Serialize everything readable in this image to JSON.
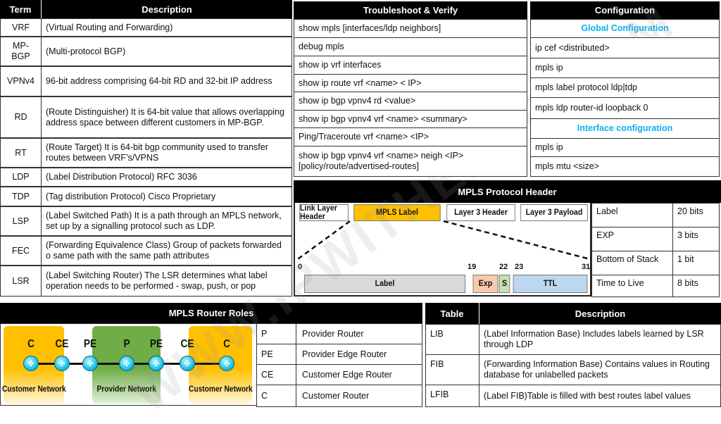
{
  "terms": {
    "header": {
      "term": "Term",
      "description": "Description"
    },
    "rows": [
      {
        "term": "VRF",
        "description": "(Virtual Routing and Forwarding)"
      },
      {
        "term": "MP-BGP",
        "description": "(Multi-protocol BGP)"
      },
      {
        "term": "VPNv4",
        "description": "96-bit address comprising 64-bit RD and 32-bit IP address"
      },
      {
        "term": "RD",
        "description": "(Route Distinguisher) It is 64-bit value that allows overlapping address space between different customers in MP-BGP."
      },
      {
        "term": "RT",
        "description": "(Route Target) It is 64-bit bgp community used to transfer routes between VRF’s/VPNS"
      },
      {
        "term": "LDP",
        "description": "(Label Distribution Protocol) RFC 3036"
      },
      {
        "term": "TDP",
        "description": "(Tag distribution Protocol) Cisco Proprietary"
      },
      {
        "term": "LSP",
        "description": "(Label Switched Path) It is a path through an MPLS network, set up by a signalling protocol such as LDP."
      },
      {
        "term": "FEC",
        "description": "(Forwarding Equivalence Class) Group of packets forwarded o same path with the same path attributes"
      },
      {
        "term": "LSR",
        "description": "(Label Switching Router) The LSR determines what label operation needs to be performed - swap, push, or pop"
      }
    ]
  },
  "troubleshoot": {
    "title": "Troubleshoot & Verify",
    "items": [
      "show mpls [interfaces/ldp neighbors]",
      "debug mpls",
      "show ip vrf interfaces",
      "show ip route vrf <name> < IP>",
      "show ip bgp vpnv4 rd <value>",
      "show ip bgp vpnv4 vrf <name> <summary>",
      "Ping/Traceroute vrf <name> <IP>",
      "show ip bgp vpnv4 vrf <name> neigh <IP> [policy/route/advertised-routes]"
    ]
  },
  "configuration": {
    "title": "Configuration",
    "global_title": "Global Configuration",
    "global_items": [
      "ip cef <distributed>",
      "mpls ip",
      "mpls label protocol ldp|tdp",
      "mpls ldp router-id loopback 0"
    ],
    "interface_title": "Interface configuration",
    "interface_items": [
      "mpls ip",
      "mpls mtu <size>"
    ],
    "heading_color": "#0ab0ef"
  },
  "header_diagram": {
    "title": "MPLS Protocol Header",
    "frame": [
      "Link Layer Header",
      "MPLS Label",
      "Layer 3 Header",
      "Layer 3 Payload"
    ],
    "bit_numbers": [
      "0",
      "19",
      "22",
      "23",
      "31"
    ],
    "fields": [
      {
        "label": "Label",
        "color": "#d9d9d9"
      },
      {
        "label": "Exp",
        "color": "#f8cbad"
      },
      {
        "label": "S",
        "color": "#c5e0b4"
      },
      {
        "label": "TTL",
        "color": "#bdd7ee"
      }
    ],
    "highlight_color": "#ffc000",
    "sizes": [
      {
        "field": "Label",
        "bits": "20 bits"
      },
      {
        "field": "EXP",
        "bits": "3 bits"
      },
      {
        "field": "Bottom of Stack",
        "bits": "1 bit"
      },
      {
        "field": "Time to Live",
        "bits": "8 bits"
      }
    ]
  },
  "router_roles": {
    "title": "MPLS Router Roles",
    "diagram": {
      "routers": [
        "C",
        "CE",
        "PE",
        "P",
        "PE",
        "CE",
        "C"
      ],
      "networks": [
        "Customer Network",
        "Provider Network",
        "Customer Network"
      ]
    },
    "roles": [
      {
        "abbr": "P",
        "name": "Provider Router"
      },
      {
        "abbr": "PE",
        "name": "Provider Edge Router"
      },
      {
        "abbr": "CE",
        "name": "Customer Edge Router"
      },
      {
        "abbr": "C",
        "name": "Customer Router"
      }
    ]
  },
  "tables": {
    "header": {
      "table": "Table",
      "description": "Description"
    },
    "rows": [
      {
        "table": "LIB",
        "description": "(Label Information Base) Includes labels learned by LSR through LDP"
      },
      {
        "table": "FIB",
        "description": "(Forwarding Information Base) Contains values in Routing database for unlabelled packets"
      },
      {
        "table": "LFIB",
        "description": "(Label FIB)Table is filled with best routes label values"
      }
    ]
  },
  "watermark": "WWW.IPWITHEASE.COM"
}
